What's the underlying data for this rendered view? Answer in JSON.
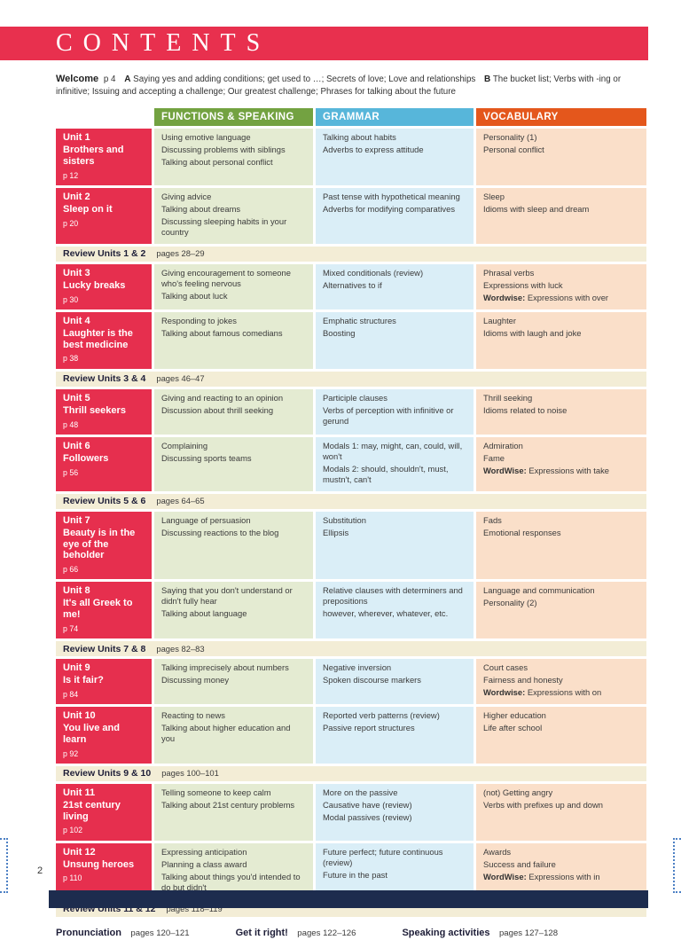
{
  "page": {
    "title": "CONTENTS",
    "page_number": "2"
  },
  "welcome": {
    "label": "Welcome",
    "page_ref": "p 4",
    "part_a_label": "A",
    "part_a": "Saying yes and adding conditions; get used to …; Secrets of love; Love and relationships",
    "part_b_label": "B",
    "part_b": "The bucket list; Verbs with -ing or infinitive; Issuing and accepting a challenge; Our greatest challenge; Phrases for talking about the future"
  },
  "table": {
    "column_headers": [
      "FUNCTIONS & SPEAKING",
      "GRAMMAR",
      "VOCABULARY"
    ],
    "rows": [
      {
        "type": "unit",
        "id": "Unit 1",
        "title": "Brothers and sisters",
        "page": "p 12",
        "functions": [
          "Using emotive language",
          "Discussing problems with siblings",
          "Talking about personal conflict"
        ],
        "grammar": [
          "Talking about habits",
          "Adverbs to express attitude"
        ],
        "vocabulary": [
          "Personality (1)",
          "Personal conflict"
        ]
      },
      {
        "type": "unit",
        "id": "Unit 2",
        "title": "Sleep on it",
        "page": "p 20",
        "functions": [
          "Giving advice",
          "Talking about dreams",
          "Discussing sleeping habits in your country"
        ],
        "grammar": [
          "Past tense with hypothetical meaning",
          "Adverbs for modifying comparatives"
        ],
        "vocabulary": [
          "Sleep",
          "Idioms with sleep and dream"
        ]
      },
      {
        "type": "review",
        "label": "Review Units 1 & 2",
        "pages": "pages 28–29"
      },
      {
        "type": "unit",
        "id": "Unit 3",
        "title": "Lucky breaks",
        "page": "p 30",
        "functions": [
          "Giving encouragement to someone who's feeling nervous",
          "Talking about luck"
        ],
        "grammar": [
          "Mixed conditionals (review)",
          "Alternatives to if"
        ],
        "vocabulary": [
          "Phrasal verbs",
          "Expressions with luck",
          "Wordwise: Expressions with over"
        ]
      },
      {
        "type": "unit",
        "id": "Unit 4",
        "title": "Laughter is the best medicine",
        "page": "p 38",
        "functions": [
          "Responding to jokes",
          "Talking about famous comedians"
        ],
        "grammar": [
          "Emphatic structures",
          "Boosting"
        ],
        "vocabulary": [
          "Laughter",
          "Idioms with laugh and joke"
        ]
      },
      {
        "type": "review",
        "label": "Review Units 3 & 4",
        "pages": "pages 46–47"
      },
      {
        "type": "unit",
        "id": "Unit 5",
        "title": "Thrill seekers",
        "page": "p 48",
        "functions": [
          "Giving and reacting to an opinion",
          "Discussion about thrill seeking"
        ],
        "grammar": [
          "Participle clauses",
          "Verbs of perception with infinitive or gerund"
        ],
        "vocabulary": [
          "Thrill seeking",
          "Idioms related to noise"
        ]
      },
      {
        "type": "unit",
        "id": "Unit 6",
        "title": "Followers",
        "page": "p 56",
        "functions": [
          "Complaining",
          "Discussing sports teams"
        ],
        "grammar": [
          "Modals 1: may, might, can, could, will, won't",
          "Modals 2: should, shouldn't, must, mustn't, can't"
        ],
        "vocabulary": [
          "Admiration",
          "Fame",
          "WordWise: Expressions with take"
        ]
      },
      {
        "type": "review",
        "label": "Review Units 5 & 6",
        "pages": "pages 64–65"
      },
      {
        "type": "unit",
        "id": "Unit 7",
        "title": "Beauty is in the eye of the beholder",
        "page": "p 66",
        "functions": [
          "Language of persuasion",
          "Discussing reactions to the blog"
        ],
        "grammar": [
          "Substitution",
          "Ellipsis"
        ],
        "vocabulary": [
          "Fads",
          "Emotional responses"
        ]
      },
      {
        "type": "unit",
        "id": "Unit 8",
        "title": "It's all Greek to me!",
        "page": "p 74",
        "functions": [
          "Saying that you don't understand or didn't fully hear",
          "Talking about language"
        ],
        "grammar": [
          "Relative clauses with determiners and prepositions",
          "however, wherever, whatever, etc."
        ],
        "vocabulary": [
          "Language and communication",
          "Personality (2)"
        ]
      },
      {
        "type": "review",
        "label": "Review Units 7 & 8",
        "pages": "pages 82–83"
      },
      {
        "type": "unit",
        "id": "Unit 9",
        "title": "Is it fair?",
        "page": "p 84",
        "functions": [
          "Talking imprecisely about numbers",
          "Discussing money"
        ],
        "grammar": [
          "Negative inversion",
          "Spoken discourse markers"
        ],
        "vocabulary": [
          "Court cases",
          "Fairness and honesty",
          "Wordwise: Expressions with on"
        ]
      },
      {
        "type": "unit",
        "id": "Unit 10",
        "title": "You live and learn",
        "page": "p 92",
        "functions": [
          "Reacting to news",
          "Talking about higher education and you"
        ],
        "grammar": [
          "Reported verb patterns (review)",
          "Passive report structures"
        ],
        "vocabulary": [
          "Higher education",
          "Life after school"
        ]
      },
      {
        "type": "review",
        "label": "Review Units 9 & 10",
        "pages": "pages 100–101"
      },
      {
        "type": "unit",
        "id": "Unit 11",
        "title": "21st century living",
        "page": "p 102",
        "functions": [
          "Telling someone to keep calm",
          "Talking about 21st century problems"
        ],
        "grammar": [
          "More on the passive",
          "Causative have (review)",
          "Modal passives (review)"
        ],
        "vocabulary": [
          "(not) Getting angry",
          "Verbs with prefixes up and down"
        ]
      },
      {
        "type": "unit",
        "id": "Unit 12",
        "title": "Unsung heroes",
        "page": "p 110",
        "functions": [
          "Expressing anticipation",
          "Planning a class award",
          "Talking about things you'd intended to do but didn't"
        ],
        "grammar": [
          "Future perfect; future continuous (review)",
          "Future in the past"
        ],
        "vocabulary": [
          "Awards",
          "Success and failure",
          "WordWise: Expressions with in"
        ]
      },
      {
        "type": "review",
        "label": "Review Units 11 & 12",
        "pages": "pages 118–119"
      }
    ]
  },
  "footer": {
    "items": [
      {
        "label": "Pronunciation",
        "pages": "pages 120–121"
      },
      {
        "label": "Get it right!",
        "pages": "pages 122–126"
      },
      {
        "label": "Speaking activities",
        "pages": "pages 127–128"
      }
    ]
  },
  "colors": {
    "banner_red": "#e8304e",
    "unit_red": "#e62f4e",
    "functions_green": "#73a241",
    "functions_bg": "#e4ebd2",
    "grammar_blue": "#57b6da",
    "grammar_bg": "#daeef7",
    "vocabulary_orange": "#e4571c",
    "vocabulary_bg": "#fadfc9",
    "review_bg": "#f3edd6",
    "footer_navy": "#1d2c4e"
  }
}
